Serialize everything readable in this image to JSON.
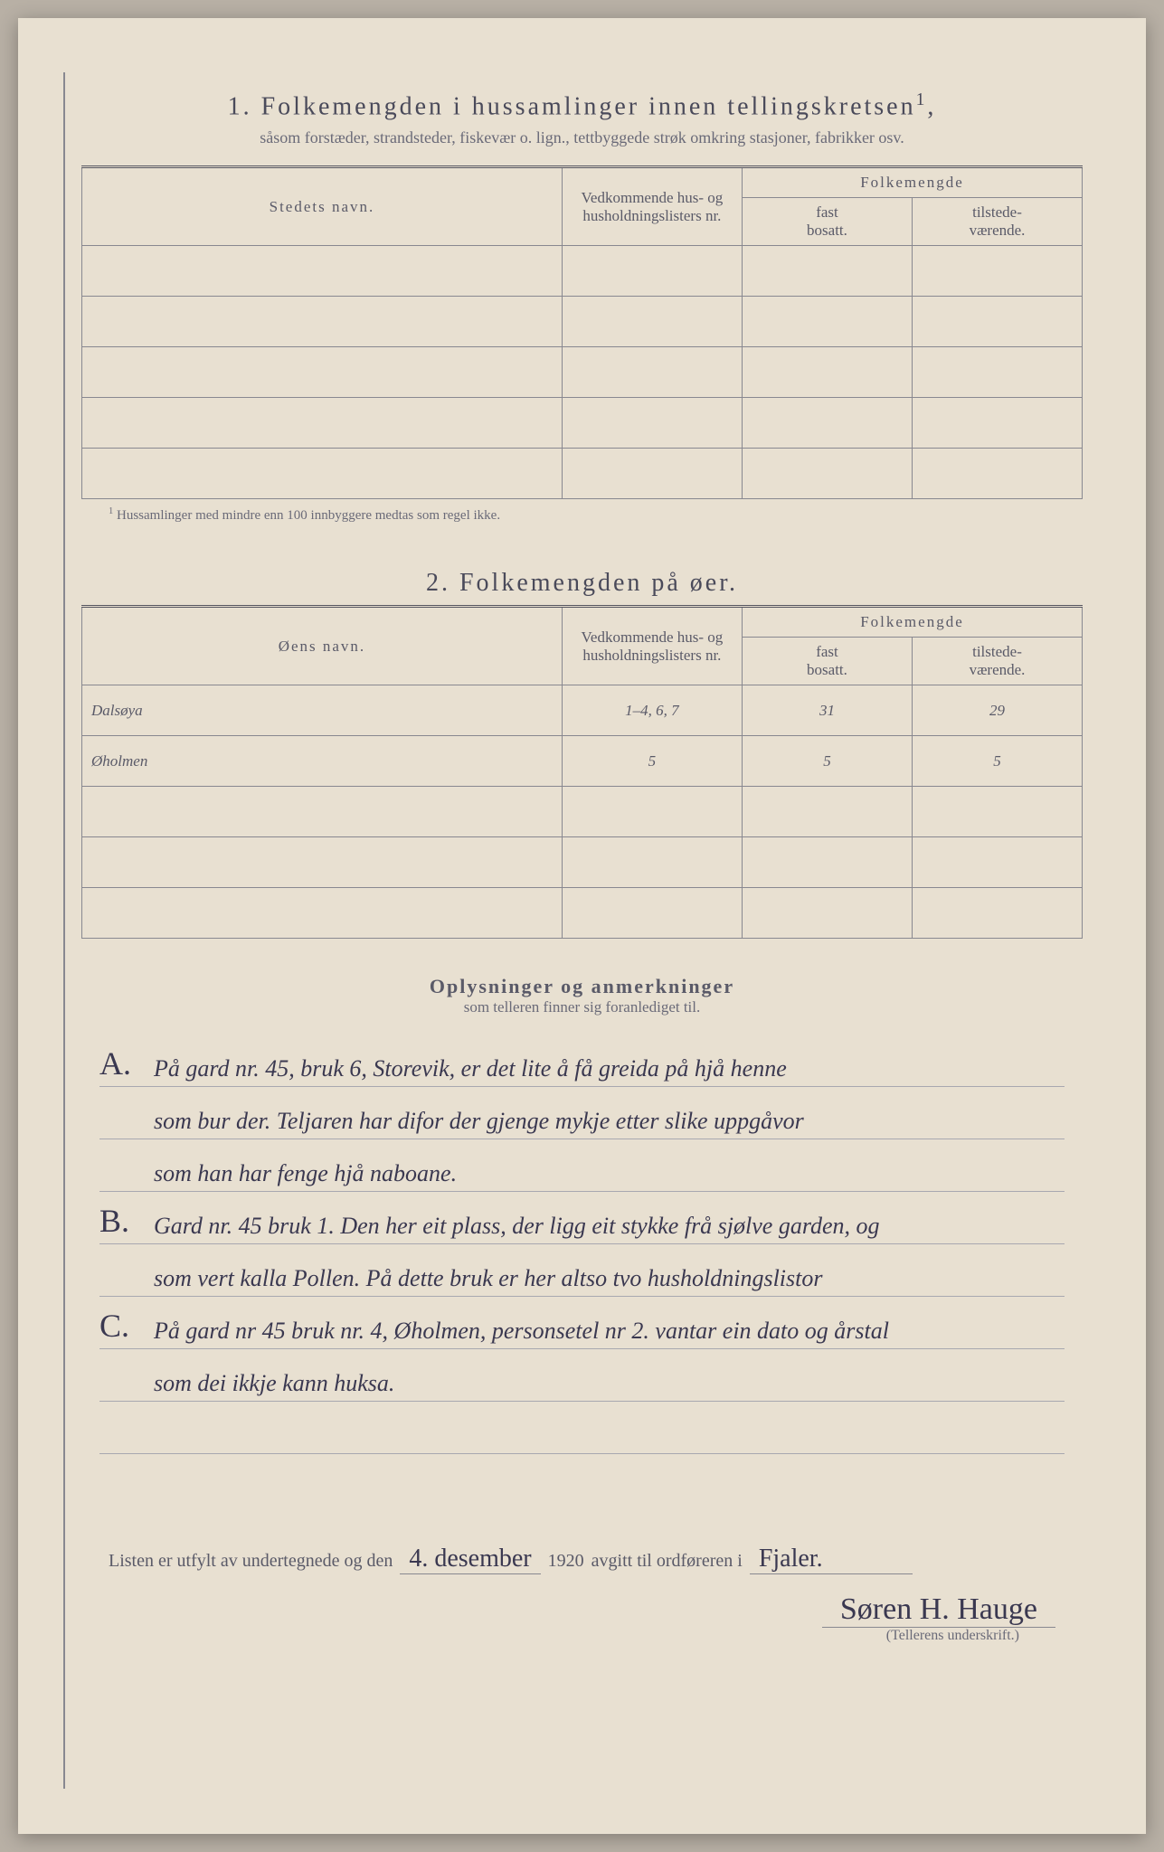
{
  "section1": {
    "number": "1.",
    "title": "Folkemengden i hussamlinger innen tellingskretsen",
    "title_sup": "1",
    "subtitle": "såsom forstæder, strandsteder, fiskevær o. lign., tettbyggede strøk omkring stasjoner, fabrikker osv.",
    "headers": {
      "name": "Stedets navn.",
      "nr": "Vedkommende hus- og husholdningslisters nr.",
      "fm": "Folkemengde",
      "fast": "fast",
      "fast_sub": "bosatt.",
      "tilstede": "tilstede-",
      "tilstede_sub": "værende."
    },
    "rows": [
      {
        "name": "",
        "nr": "",
        "fast": "",
        "tilstede": ""
      },
      {
        "name": "",
        "nr": "",
        "fast": "",
        "tilstede": ""
      },
      {
        "name": "",
        "nr": "",
        "fast": "",
        "tilstede": ""
      },
      {
        "name": "",
        "nr": "",
        "fast": "",
        "tilstede": ""
      },
      {
        "name": "",
        "nr": "",
        "fast": "",
        "tilstede": ""
      }
    ],
    "footnote_marker": "1",
    "footnote": "Hussamlinger med mindre enn 100 innbyggere medtas som regel ikke."
  },
  "section2": {
    "number": "2.",
    "title": "Folkemengden på øer.",
    "headers": {
      "name": "Øens navn.",
      "nr": "Vedkommende hus- og husholdningslisters nr.",
      "fm": "Folkemengde",
      "fast": "fast",
      "fast_sub": "bosatt.",
      "tilstede": "tilstede-",
      "tilstede_sub": "værende."
    },
    "rows": [
      {
        "name": "Dalsøya",
        "nr": "1–4, 6, 7",
        "fast": "31",
        "tilstede": "29"
      },
      {
        "name": "Øholmen",
        "nr": "5",
        "fast": "5",
        "tilstede": "5"
      },
      {
        "name": "",
        "nr": "",
        "fast": "",
        "tilstede": ""
      },
      {
        "name": "",
        "nr": "",
        "fast": "",
        "tilstede": ""
      },
      {
        "name": "",
        "nr": "",
        "fast": "",
        "tilstede": ""
      }
    ]
  },
  "notes": {
    "title": "Oplysninger og anmerkninger",
    "subtitle": "som telleren finner sig foranlediget til.",
    "lines": [
      {
        "marker": "A.",
        "text": "På gard nr. 45, bruk 6, Storevik, er det lite å få greida på hjå henne"
      },
      {
        "marker": "",
        "text": "som bur der. Teljaren har difor der gjenge mykje etter slike uppgåvor"
      },
      {
        "marker": "",
        "text": "som han har fenge hjå naboane."
      },
      {
        "marker": "B.",
        "text": "Gard nr. 45 bruk 1. Den her eit plass, der ligg eit stykke frå sjølve garden, og"
      },
      {
        "marker": "",
        "text": "som vert kalla Pollen. På dette bruk er her altso tvo husholdningslistor"
      },
      {
        "marker": "C.",
        "text": "På gard nr 45 bruk nr. 4, Øholmen, personsetel nr 2. vantar ein dato og årstal"
      },
      {
        "marker": "",
        "text": "som dei ikkje kann huksa."
      },
      {
        "marker": "",
        "text": ""
      }
    ]
  },
  "footer": {
    "prefix": "Listen er utfylt av undertegnede og den",
    "date": "4. desember",
    "year": "1920",
    "middle": "avgitt til ordføreren i",
    "place": "Fjaler.",
    "signature": "Søren H. Hauge",
    "sig_label": "(Tellerens underskrift.)"
  },
  "colors": {
    "paper": "#e8e0d1",
    "ink_print": "#5a5a68",
    "ink_hand": "#3a3850",
    "border": "#888890"
  }
}
